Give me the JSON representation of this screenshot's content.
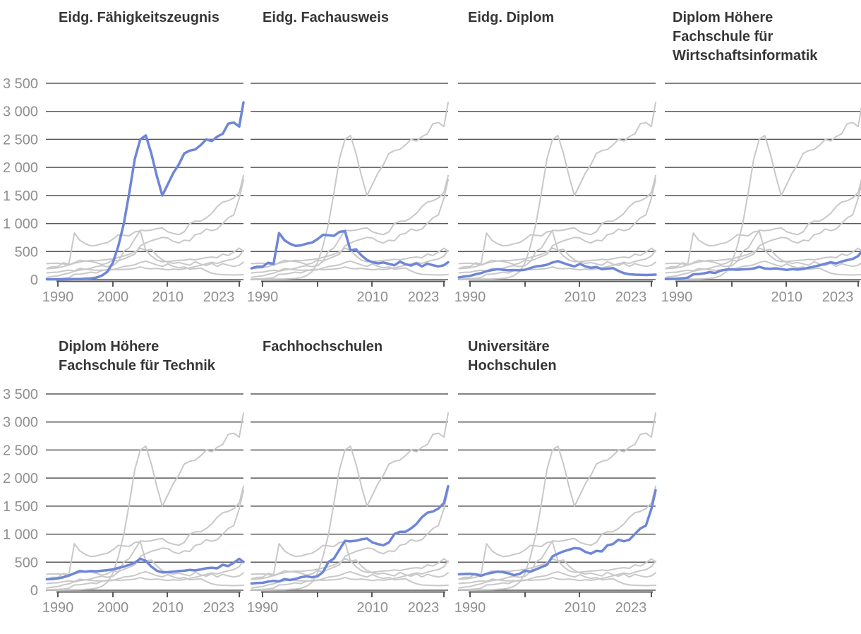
{
  "chart_data": {
    "type": "line",
    "description": "Small-multiples (facet) line chart with 7 panels; each panel highlights one qualification series in blue, all other series shown in gray",
    "x_years": [
      1988,
      1989,
      1990,
      1991,
      1992,
      1993,
      1994,
      1995,
      1996,
      1997,
      1998,
      1999,
      2000,
      2001,
      2002,
      2003,
      2004,
      2005,
      2006,
      2007,
      2008,
      2009,
      2010,
      2011,
      2012,
      2013,
      2014,
      2015,
      2016,
      2017,
      2018,
      2019,
      2020,
      2021,
      2022,
      2023,
      2024
    ],
    "ylim": [
      0,
      3500
    ],
    "grid": true,
    "y_tick_values": [
      3500,
      3000,
      2500,
      2000,
      1500,
      1000,
      500,
      0
    ],
    "y_tick_labels": [
      "3 500",
      "3 000",
      "2 500",
      "2 000",
      "1 500",
      "1 000",
      "500",
      "0"
    ],
    "x_tick_years": [
      1990,
      2000,
      2010,
      2023
    ],
    "series": [
      {
        "id": "efz",
        "name": "Eidg. Fähigkeitszeugnis",
        "values": [
          5,
          5,
          5,
          6,
          8,
          10,
          10,
          15,
          20,
          35,
          70,
          140,
          300,
          600,
          1000,
          1550,
          2150,
          2500,
          2570,
          2250,
          1850,
          1500,
          1700,
          1900,
          2050,
          2250,
          2300,
          2320,
          2400,
          2500,
          2470,
          2550,
          2600,
          2780,
          2800,
          2730,
          3160
        ]
      },
      {
        "id": "fachausweis",
        "name": "Eidg. Fachausweis",
        "values": [
          200,
          230,
          230,
          300,
          280,
          830,
          700,
          640,
          600,
          610,
          640,
          660,
          720,
          800,
          790,
          780,
          850,
          865,
          520,
          540,
          430,
          350,
          310,
          290,
          305,
          280,
          255,
          320,
          275,
          250,
          290,
          235,
          285,
          255,
          235,
          255,
          310
        ]
      },
      {
        "id": "diplom",
        "name": "Eidg. Diplom",
        "values": [
          40,
          55,
          65,
          95,
          115,
          150,
          170,
          185,
          175,
          165,
          170,
          165,
          175,
          205,
          235,
          245,
          265,
          305,
          330,
          295,
          260,
          235,
          280,
          235,
          210,
          225,
          185,
          195,
          205,
          155,
          115,
          95,
          88,
          85,
          82,
          85,
          88
        ]
      },
      {
        "id": "hf_wirtschaftsinformatik",
        "name": "Diplom Höhere Fachschule für Wirtschaftsinformatik",
        "values": [
          10,
          12,
          15,
          22,
          35,
          95,
          98,
          112,
          132,
          118,
          160,
          178,
          182,
          176,
          182,
          188,
          198,
          228,
          198,
          192,
          200,
          188,
          172,
          188,
          178,
          190,
          212,
          232,
          255,
          282,
          308,
          288,
          322,
          348,
          368,
          420,
          520
        ]
      },
      {
        "id": "hf_technik",
        "name": "Diplom Höhere Fachschule für Technik",
        "values": [
          195,
          200,
          212,
          232,
          262,
          302,
          345,
          330,
          342,
          336,
          348,
          358,
          372,
          396,
          422,
          452,
          492,
          562,
          522,
          422,
          348,
          318,
          322,
          332,
          342,
          348,
          362,
          352,
          372,
          392,
          402,
          390,
          455,
          430,
          490,
          560,
          505
        ]
      },
      {
        "id": "fachhochschulen",
        "name": "Fachhochschulen",
        "values": [
          120,
          128,
          132,
          152,
          168,
          158,
          198,
          182,
          202,
          232,
          248,
          232,
          248,
          325,
          505,
          565,
          725,
          880,
          872,
          882,
          908,
          922,
          852,
          822,
          802,
          852,
          1002,
          1042,
          1042,
          1102,
          1182,
          1302,
          1382,
          1405,
          1455,
          1555,
          1855
        ]
      },
      {
        "id": "uni",
        "name": "Universitäre Hochschulen",
        "values": [
          285,
          290,
          292,
          282,
          258,
          292,
          312,
          332,
          322,
          302,
          268,
          292,
          348,
          332,
          372,
          412,
          452,
          602,
          652,
          692,
          722,
          752,
          742,
          682,
          652,
          702,
          692,
          802,
          822,
          902,
          872,
          902,
          1002,
          1102,
          1152,
          1452,
          1782
        ]
      }
    ],
    "facets": [
      {
        "title": "Eidg. Fähigkeitszeugnis",
        "highlight": "efz",
        "y_axis": true,
        "x_labels": [
          "1990",
          "2000",
          "2010",
          "2023"
        ]
      },
      {
        "title": "Eidg. Fachausweis",
        "highlight": "fachausweis",
        "y_axis": false,
        "x_labels": [
          "1990",
          "2010",
          "2023"
        ]
      },
      {
        "title": "Eidg. Diplom",
        "highlight": "diplom",
        "y_axis": false,
        "x_labels": [
          "1990",
          "2010",
          "2023"
        ]
      },
      {
        "title": "Diplom Höhere\nFachschule für\nWirtschaftsinformatik",
        "highlight": "hf_wirtschaftsinformatik",
        "y_axis": false,
        "x_labels": [
          "1990",
          "2010",
          "2023"
        ]
      },
      {
        "title": "Diplom Höhere\nFachschule für Technik",
        "highlight": "hf_technik",
        "y_axis": true,
        "x_labels": [
          "1990",
          "2000",
          "2010",
          "2023"
        ]
      },
      {
        "title": "Fachhochschulen",
        "highlight": "fachhochschulen",
        "y_axis": false,
        "x_labels": [
          "1990",
          "2010",
          "2023"
        ]
      },
      {
        "title": "Universitäre\nHochschulen",
        "highlight": "uni",
        "y_axis": false,
        "x_labels": [
          "1990",
          "2010",
          "2023"
        ]
      }
    ],
    "colors": {
      "highlight": "#6e86d8",
      "other_series": "#c8c8c8",
      "gridline": "#58585a",
      "axis_label": "#8f8f8f",
      "title": "#363636",
      "background": "#ffffff"
    },
    "legend": "none"
  }
}
